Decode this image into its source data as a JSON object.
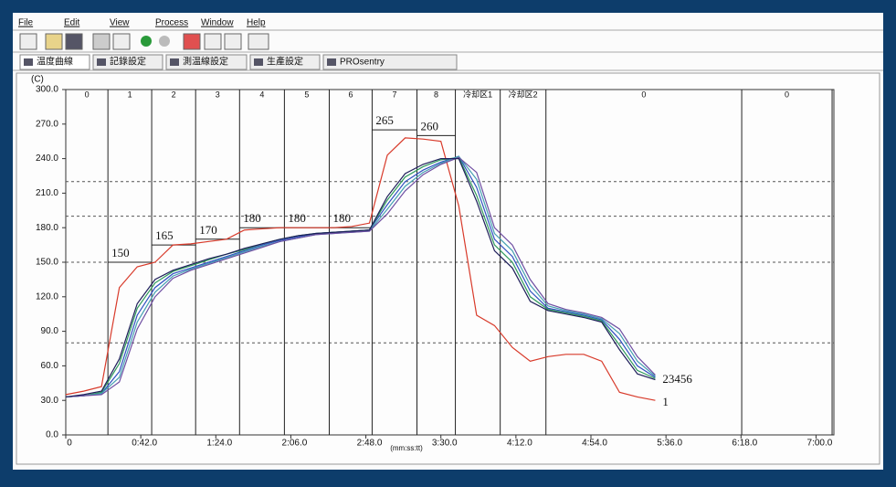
{
  "menu": [
    "File",
    "Edit",
    "View",
    "Process",
    "Window",
    "Help"
  ],
  "tabs": [
    "温度曲線",
    "記錄設定",
    "測温線設定",
    "生產設定",
    "PROsentry"
  ],
  "chart_data": {
    "type": "line",
    "y_unit_label": "(C)",
    "x_label": "(mm:ss:tt)",
    "xlim": [
      0,
      430
    ],
    "ylim": [
      0,
      300
    ],
    "xticks": [
      0,
      {
        "value": 42,
        "label": "0:42.0"
      },
      {
        "value": 84,
        "label": "1:24.0"
      },
      {
        "value": 126,
        "label": "2:06.0"
      },
      {
        "value": 168,
        "label": "2:48.0"
      },
      {
        "value": 210,
        "label": "3:30.0"
      },
      {
        "value": 252,
        "label": "4:12.0"
      },
      {
        "value": 294,
        "label": "4:54.0"
      },
      {
        "value": 336,
        "label": "5:36.0"
      },
      {
        "value": 378,
        "label": "6:18.0"
      },
      {
        "value": 420,
        "label": "7:00.0"
      }
    ],
    "yticks": [
      {
        "value": 0,
        "label": "0.0"
      },
      {
        "value": 30,
        "label": "30.0"
      },
      {
        "value": 60,
        "label": "60.0"
      },
      {
        "value": 90,
        "label": "90.0"
      },
      {
        "value": 120,
        "label": "120.0"
      },
      {
        "value": 150,
        "label": "150.0"
      },
      {
        "value": 180,
        "label": "180.0"
      },
      {
        "value": 210,
        "label": "210.0"
      },
      {
        "value": 240,
        "label": "240.0"
      },
      {
        "value": 270,
        "label": "270.0"
      },
      {
        "value": 300,
        "label": "300.0"
      }
    ],
    "zones": [
      "0",
      "1",
      "2",
      "3",
      "4",
      "5",
      "6",
      "7",
      "8",
      "冷却区1",
      "冷却区2",
      "0",
      "0"
    ],
    "zone_edges": [
      23.6,
      48.1,
      72.7,
      97.3,
      122.4,
      147.5,
      171.5,
      196.6,
      218.1,
      243.2,
      268.8,
      378.4,
      429
    ],
    "setpoints": [
      null,
      150,
      165,
      170,
      180,
      180,
      180,
      265,
      260,
      null,
      null,
      null,
      null
    ],
    "limit_lines": [
      220,
      190,
      150,
      80
    ],
    "x": [
      0,
      10,
      20,
      30,
      40,
      50,
      60,
      70,
      80,
      90,
      100,
      110,
      120,
      130,
      140,
      150,
      160,
      170,
      180,
      190,
      200,
      210,
      220,
      230,
      240,
      250,
      260,
      270,
      280,
      290,
      300,
      310,
      320,
      330
    ],
    "series": [
      {
        "color": "#d83a2a",
        "values": [
          35,
          38,
          42,
          128,
          146,
          150,
          165,
          166,
          168,
          170,
          178,
          179,
          180,
          180,
          180,
          180,
          181,
          184,
          243,
          258,
          257,
          255,
          199,
          104,
          95,
          76,
          64,
          68,
          70,
          70,
          64,
          37,
          33,
          30
        ]
      },
      {
        "color": "#2f4fc0",
        "values": [
          33,
          34,
          36,
          55,
          104,
          128,
          140,
          145,
          150,
          155,
          160,
          165,
          169,
          172,
          175,
          176,
          177,
          178,
          200,
          220,
          230,
          237,
          242,
          215,
          170,
          155,
          125,
          110,
          107,
          104,
          100,
          83,
          60,
          50
        ]
      },
      {
        "color": "#2e9a5c",
        "values": [
          33,
          34,
          37,
          62,
          110,
          132,
          142,
          147,
          152,
          157,
          161,
          166,
          170,
          173,
          175,
          176,
          177,
          178,
          204,
          224,
          233,
          239,
          241,
          208,
          165,
          150,
          120,
          109,
          106,
          103,
          99,
          78,
          56,
          49
        ]
      },
      {
        "color": "#45a0b2",
        "values": [
          33,
          34,
          36,
          50,
          98,
          124,
          138,
          144,
          149,
          154,
          159,
          164,
          168,
          171,
          174,
          175,
          176,
          177,
          196,
          216,
          228,
          236,
          242,
          222,
          175,
          160,
          130,
          112,
          108,
          105,
          101,
          88,
          64,
          51
        ]
      },
      {
        "color": "#6e4ea2",
        "values": [
          33,
          34,
          35,
          46,
          92,
          120,
          136,
          143,
          148,
          153,
          158,
          163,
          168,
          171,
          174,
          175,
          176,
          177,
          192,
          212,
          226,
          235,
          241,
          228,
          180,
          165,
          135,
          114,
          109,
          106,
          102,
          92,
          68,
          52
        ]
      },
      {
        "color": "#1e1e5a",
        "values": [
          33,
          35,
          38,
          66,
          114,
          135,
          143,
          148,
          153,
          157,
          162,
          166,
          170,
          173,
          175,
          176,
          177,
          178,
          207,
          227,
          235,
          240,
          240,
          203,
          160,
          145,
          116,
          108,
          105,
          102,
          98,
          74,
          53,
          48
        ]
      }
    ],
    "curve_labels": [
      {
        "text": "1",
        "series": 0
      },
      {
        "text": "23456",
        "series": 1
      }
    ]
  }
}
